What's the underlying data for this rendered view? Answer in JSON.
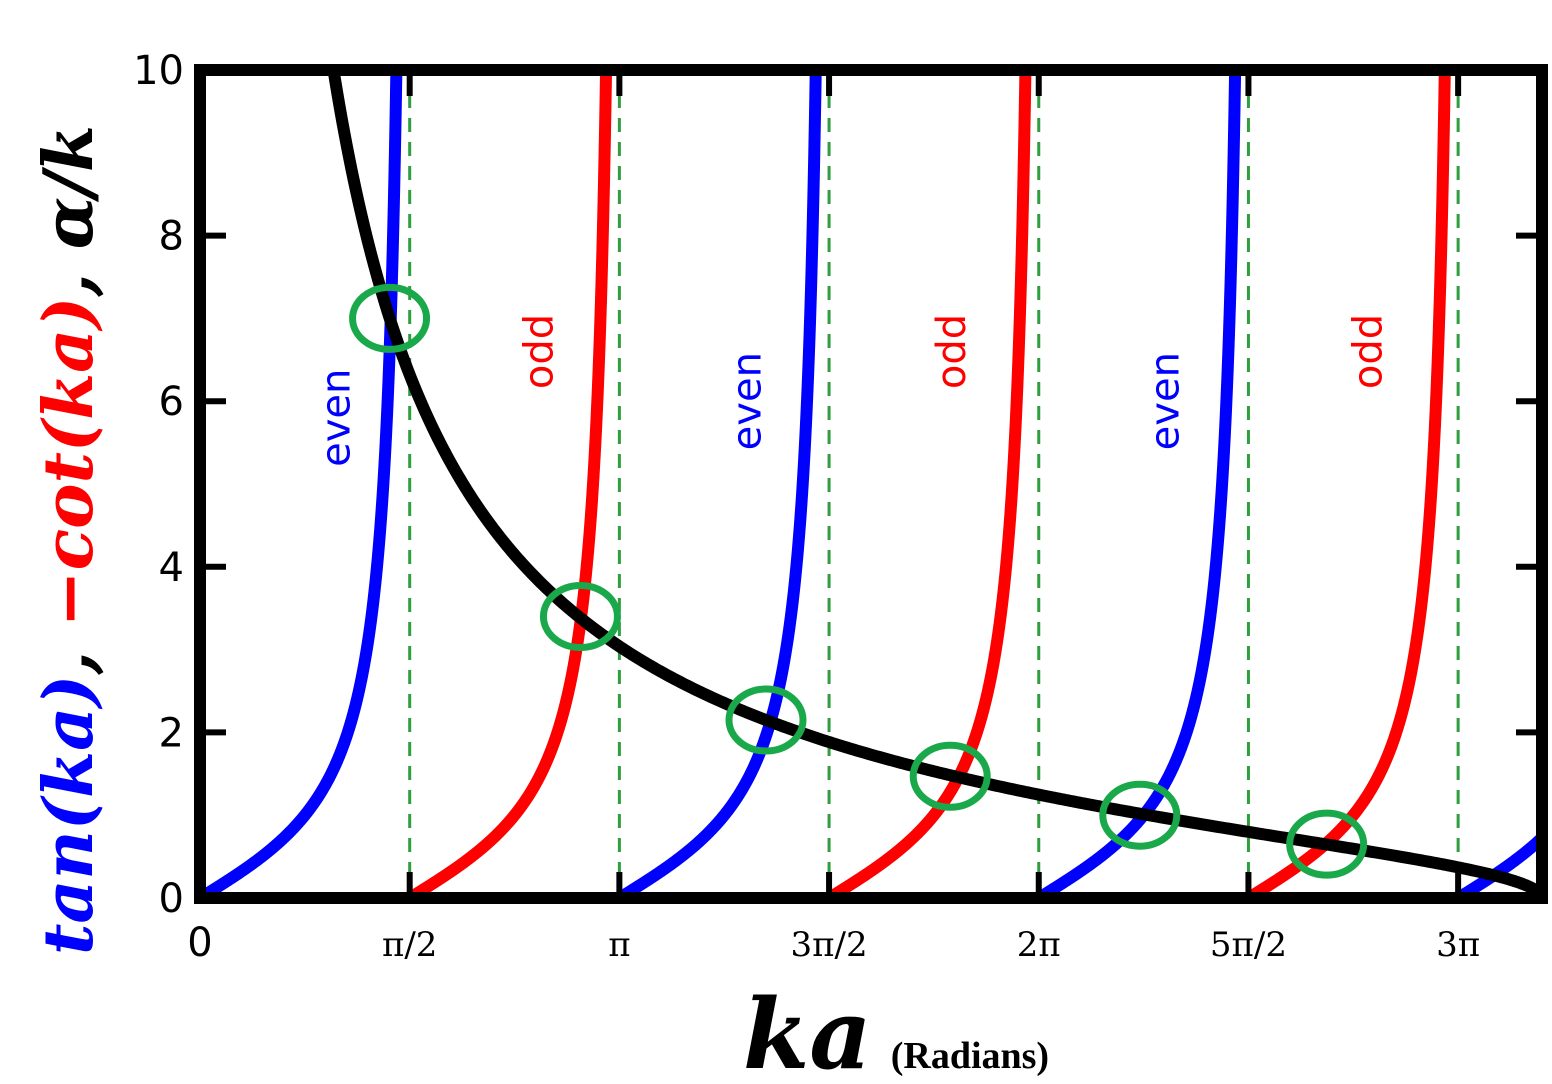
{
  "chart_data": {
    "type": "line",
    "title": "",
    "ylabel_parts": [
      {
        "text": "tan(ka)",
        "color": "#0000ff"
      },
      {
        "text": ", ",
        "color": "#000000"
      },
      {
        "text": "−cot(ka)",
        "color": "#ff0000"
      },
      {
        "text": ", α/k",
        "color": "#000000"
      }
    ],
    "xlabel": "ka",
    "xlabel_unit": "(Radians)",
    "xlim": [
      0,
      10.0531
    ],
    "ylim": [
      0,
      10
    ],
    "y_ticks": [
      0,
      2,
      4,
      6,
      8,
      10
    ],
    "y_tick_labels": [
      "0",
      "2",
      "4",
      "6",
      "8",
      "10"
    ],
    "x_ticks": [
      0,
      1.5708,
      3.1416,
      4.7124,
      6.2832,
      7.854,
      9.4248
    ],
    "x_tick_labels": [
      "0",
      "π/2",
      "π",
      "3π/2",
      "2π",
      "5π/2",
      "3π"
    ],
    "grid": false,
    "vlines": {
      "x": [
        1.5708,
        3.1416,
        4.7124,
        6.2832,
        7.854,
        9.4248
      ],
      "style": "dashed",
      "color": "#2e9e3e"
    },
    "series": [
      {
        "kind": "tan",
        "color": "#0000ff",
        "label": "even"
      },
      {
        "kind": "negcot",
        "color": "#ff0000",
        "label": "odd"
      },
      {
        "kind": "alpha_over_k",
        "color": "#000000",
        "z0": 10.05
      }
    ],
    "curve_labels": [
      {
        "text": "even",
        "color": "#0000ff",
        "x": 1.12,
        "y": 5.8
      },
      {
        "text": "odd",
        "color": "#ff0000",
        "x": 2.64,
        "y": 6.6
      },
      {
        "text": "even",
        "color": "#0000ff",
        "x": 4.2,
        "y": 6.0
      },
      {
        "text": "odd",
        "color": "#ff0000",
        "x": 5.73,
        "y": 6.6
      },
      {
        "text": "even",
        "color": "#0000ff",
        "x": 7.33,
        "y": 6.0
      },
      {
        "text": "odd",
        "color": "#ff0000",
        "x": 8.85,
        "y": 6.6
      }
    ],
    "intersections": [
      {
        "x": 1.42,
        "y": 7.0
      },
      {
        "x": 2.85,
        "y": 3.4
      },
      {
        "x": 4.24,
        "y": 2.15
      },
      {
        "x": 5.62,
        "y": 1.47
      },
      {
        "x": 7.04,
        "y": 1.0
      },
      {
        "x": 8.44,
        "y": 0.65
      }
    ],
    "marker_color": "#19a84a"
  }
}
